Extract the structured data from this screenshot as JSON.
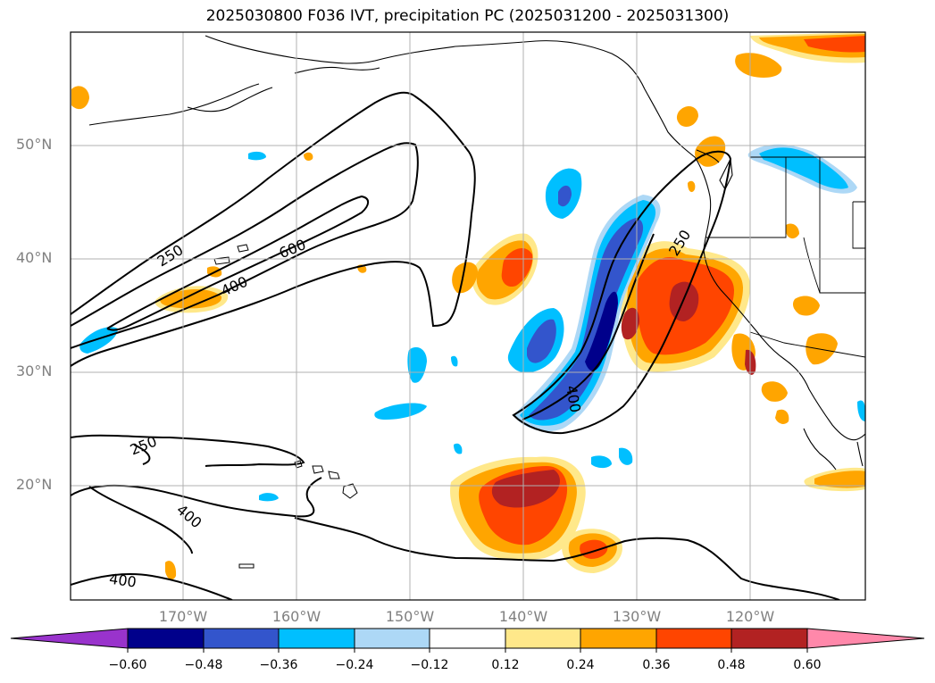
{
  "title": "2025030800 F036 IVT, precipitation PC (2025031200 - 2025031300)",
  "map": {
    "lat_ticks": [
      "50°N",
      "40°N",
      "30°N",
      "20°N"
    ],
    "lon_ticks": [
      "170°W",
      "160°W",
      "150°W",
      "140°W",
      "130°W",
      "120°W"
    ],
    "contour_labels": [
      "250",
      "600",
      "400",
      "250",
      "400",
      "250",
      "400",
      "400"
    ]
  },
  "colorbar": {
    "ticks": [
      "−0.60",
      "−0.48",
      "−0.36",
      "−0.24",
      "−0.12",
      "0.12",
      "0.24",
      "0.36",
      "0.48",
      "0.60"
    ],
    "colors": [
      "#9933cc",
      "#00008b",
      "#3355cc",
      "#00bfff",
      "#add8f6",
      "#ffffff",
      "#ffe88a",
      "#ffa500",
      "#ff4500",
      "#b22222",
      "#ff88aa"
    ]
  },
  "colors": {
    "negative_dark": "#00008b",
    "negative_mid": "#3355cc",
    "negative_light": "#00bfff",
    "negative_pale": "#add8f6",
    "positive_pale": "#ffe88a",
    "positive_mid": "#ffa500",
    "positive_strong": "#ff4500",
    "positive_dark": "#b22222"
  }
}
